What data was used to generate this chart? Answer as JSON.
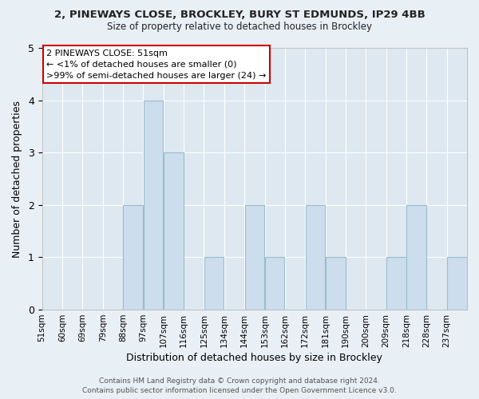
{
  "title_line1": "2, PINEWAYS CLOSE, BROCKLEY, BURY ST EDMUNDS, IP29 4BB",
  "title_line2": "Size of property relative to detached houses in Brockley",
  "xlabel": "Distribution of detached houses by size in Brockley",
  "ylabel": "Number of detached properties",
  "footer_line1": "Contains HM Land Registry data © Crown copyright and database right 2024.",
  "footer_line2": "Contains public sector information licensed under the Open Government Licence v3.0.",
  "annotation_title": "2 PINEWAYS CLOSE: 51sqm",
  "annotation_line2": "← <1% of detached houses are smaller (0)",
  "annotation_line3": ">99% of semi-detached houses are larger (24) →",
  "bin_labels": [
    "51sqm",
    "60sqm",
    "69sqm",
    "79sqm",
    "88sqm",
    "97sqm",
    "107sqm",
    "116sqm",
    "125sqm",
    "134sqm",
    "144sqm",
    "153sqm",
    "162sqm",
    "172sqm",
    "181sqm",
    "190sqm",
    "200sqm",
    "209sqm",
    "218sqm",
    "228sqm",
    "237sqm"
  ],
  "counts": [
    0,
    0,
    0,
    0,
    2,
    4,
    3,
    0,
    1,
    0,
    2,
    1,
    0,
    2,
    1,
    0,
    0,
    1,
    2,
    0,
    1
  ],
  "bar_color": "#ccdded",
  "bar_edge_color": "#9bbccc",
  "background_color": "#e8eff5",
  "plot_bg_color": "#dde8f0",
  "annotation_box_color": "#ffffff",
  "annotation_border_color": "#cc0000",
  "grid_color": "#ffffff",
  "ylim": [
    0,
    5
  ],
  "yticks": [
    0,
    1,
    2,
    3,
    4,
    5
  ]
}
